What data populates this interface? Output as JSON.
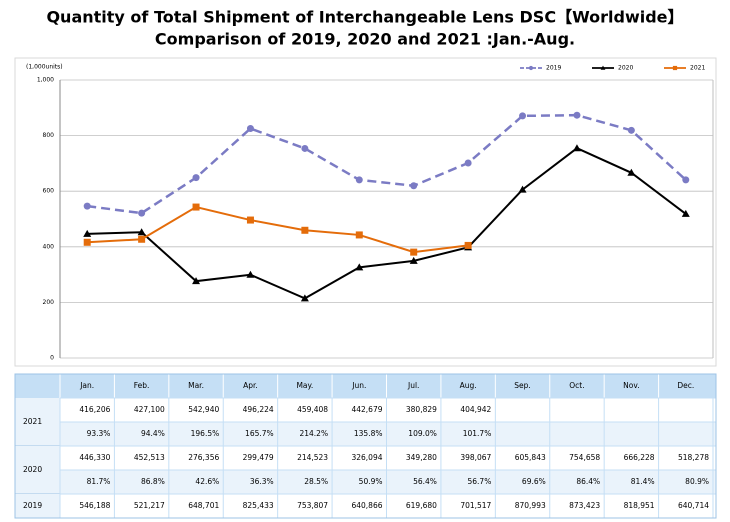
{
  "chart_data": {
    "type": "line",
    "title": "Quantity of Total Shipment of Interchangeable Lens DSC【Worldwide】",
    "subtitle": "Comparison of 2019, 2020 and 2021 :Jan.-Aug.",
    "y_label": "(1,000units)",
    "categories": [
      "Jan.",
      "Feb.",
      "Mar.",
      "Apr.",
      "May.",
      "Jun.",
      "Jul.",
      "Aug.",
      "Sep.",
      "Oct.",
      "Nov.",
      "Dec."
    ],
    "ylim": [
      0,
      1000
    ],
    "yticks": [
      0,
      200,
      400,
      600,
      800,
      {
        "value": 1000,
        "label": "1,000"
      }
    ],
    "grid": true,
    "legend": "top-right",
    "series": [
      {
        "name": "2019",
        "color": "#7b7bc4",
        "dashed": true,
        "marker": "circle",
        "values": [
          546.188,
          521.217,
          648.701,
          825.433,
          753.807,
          640.866,
          619.68,
          701.517,
          870.993,
          873.423,
          818.951,
          640.714
        ],
        "value_labels": [
          "546,188",
          "521,217",
          "648,701",
          "825,433",
          "753,807",
          "640,866",
          "619,680",
          "701,517",
          "870,993",
          "873,423",
          "818,951",
          "640,714"
        ]
      },
      {
        "name": "2020",
        "color": "#000000",
        "dashed": false,
        "marker": "triangle",
        "values": [
          446.33,
          452.513,
          276.356,
          299.479,
          214.523,
          326.094,
          349.28,
          398.067,
          605.843,
          754.658,
          666.228,
          518.278
        ],
        "value_labels": [
          "446,330",
          "452,513",
          "276,356",
          "299,479",
          "214,523",
          "326,094",
          "349,280",
          "398,067",
          "605,843",
          "754,658",
          "666,228",
          "518,278"
        ],
        "change_labels": [
          "81.7%",
          "86.8%",
          "42.6%",
          "36.3%",
          "28.5%",
          "50.9%",
          "56.4%",
          "56.7%",
          "69.6%",
          "86.4%",
          "81.4%",
          "80.9%"
        ]
      },
      {
        "name": "2021",
        "color": "#e46c0a",
        "dashed": false,
        "marker": "square",
        "values": [
          416.206,
          427.1,
          542.94,
          496.224,
          459.408,
          442.679,
          380.829,
          404.942,
          null,
          null,
          null,
          null
        ],
        "value_labels": [
          "416,206",
          "427,100",
          "542,940",
          "496,224",
          "459,408",
          "442,679",
          "380,829",
          "404,942",
          null,
          null,
          null,
          null
        ],
        "change_labels": [
          "93.3%",
          "94.4%",
          "196.5%",
          "165.7%",
          "214.2%",
          "135.8%",
          "109.0%",
          "101.7%"
        ]
      }
    ]
  }
}
